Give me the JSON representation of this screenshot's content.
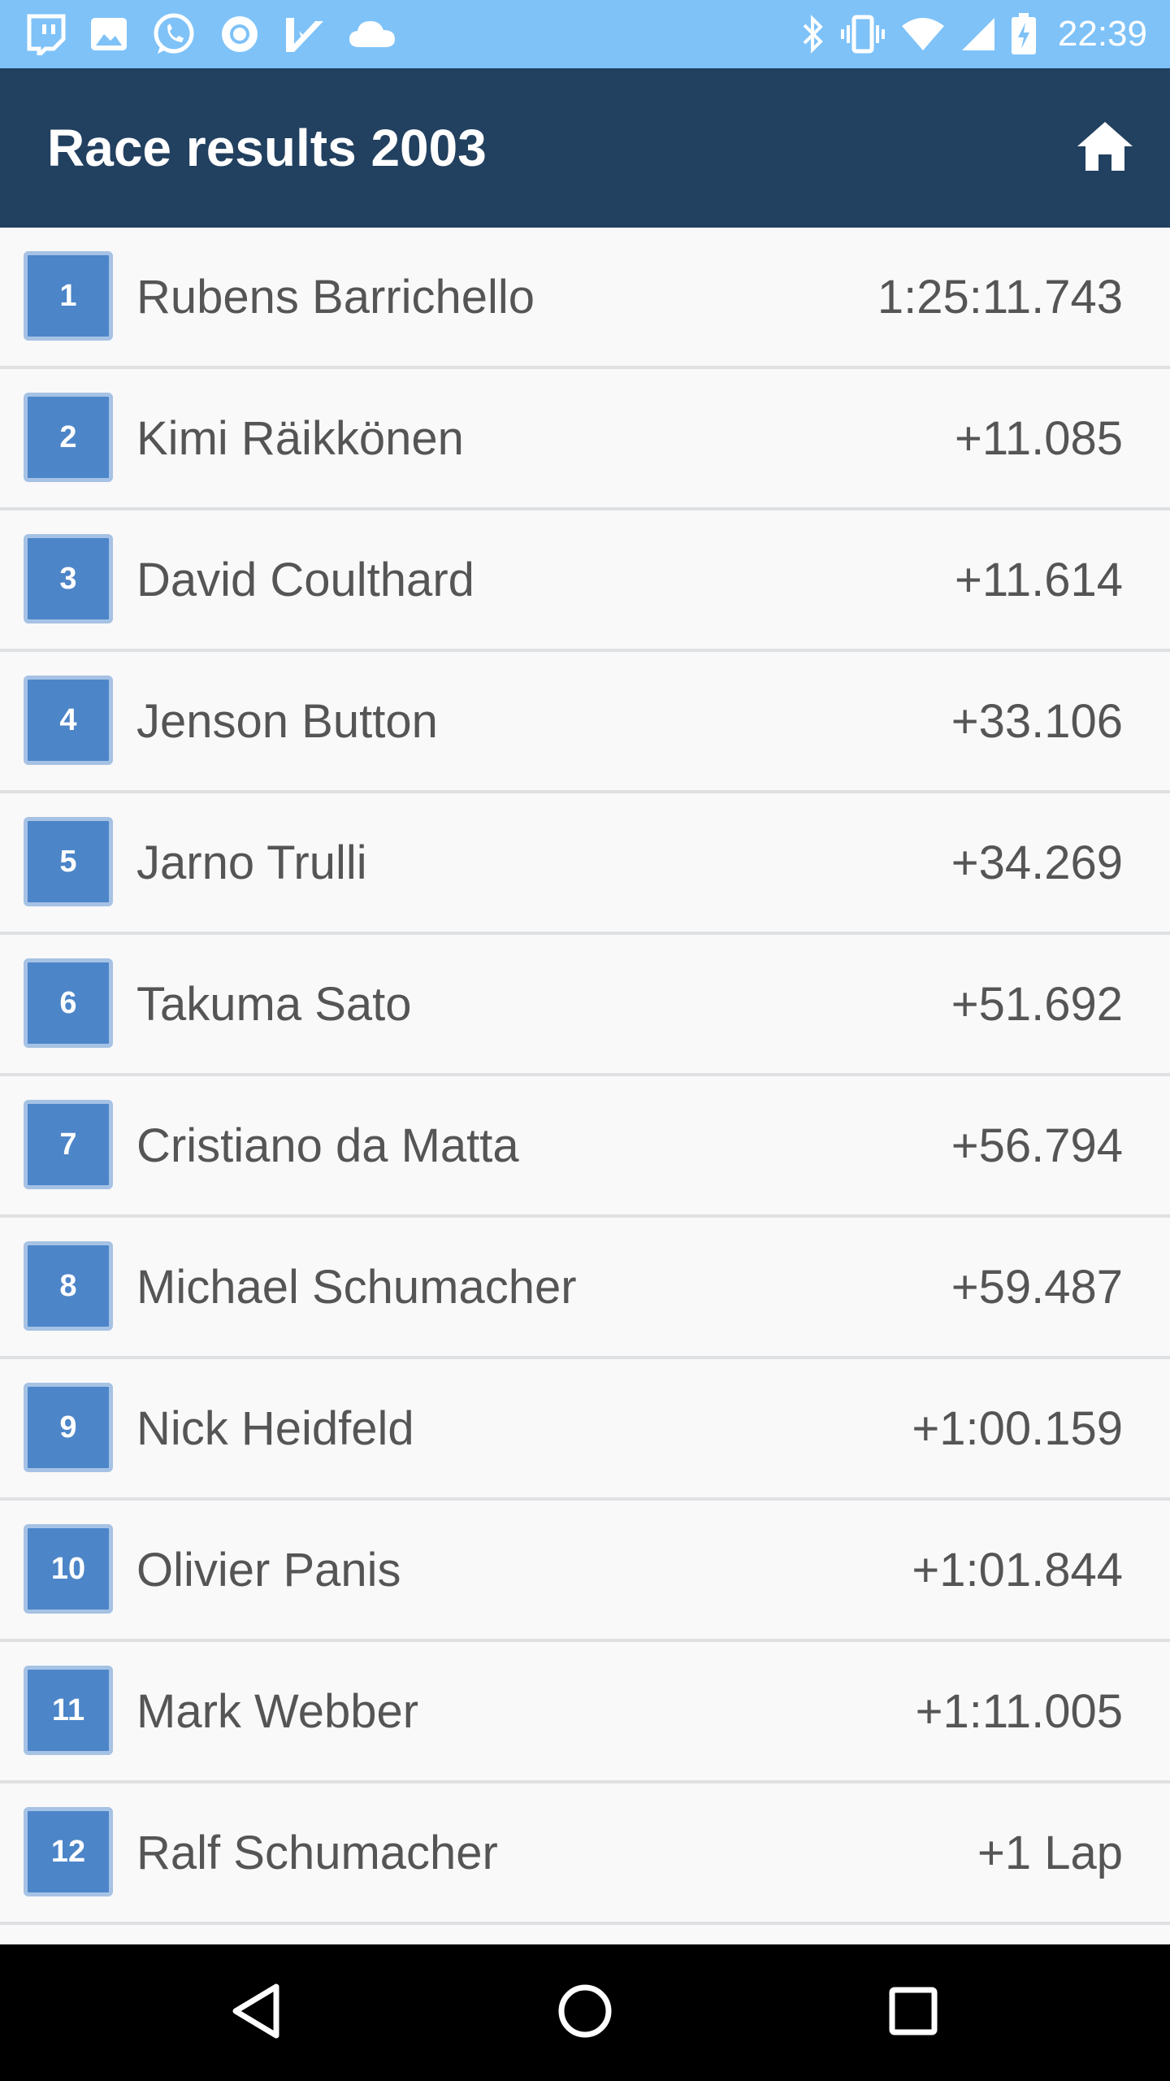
{
  "status_bar": {
    "time": "22:39",
    "left_icons": [
      "twitch-icon",
      "image-icon",
      "whatsapp-icon",
      "circle-app-icon",
      "check-app-icon",
      "cloud-icon"
    ],
    "right_icons": [
      "bluetooth-icon",
      "vibrate-icon",
      "wifi-icon",
      "signal-icon",
      "battery-charging-icon"
    ]
  },
  "app_bar": {
    "title": "Race results 2003",
    "home_icon": "home-icon"
  },
  "results": [
    {
      "position": "1",
      "driver": "Rubens Barrichello",
      "time": "1:25:11.743"
    },
    {
      "position": "2",
      "driver": "Kimi Räikkönen",
      "time": "+11.085"
    },
    {
      "position": "3",
      "driver": "David Coulthard",
      "time": "+11.614"
    },
    {
      "position": "4",
      "driver": "Jenson Button",
      "time": "+33.106"
    },
    {
      "position": "5",
      "driver": "Jarno Trulli",
      "time": "+34.269"
    },
    {
      "position": "6",
      "driver": "Takuma Sato",
      "time": "+51.692"
    },
    {
      "position": "7",
      "driver": "Cristiano da Matta",
      "time": "+56.794"
    },
    {
      "position": "8",
      "driver": "Michael Schumacher",
      "time": "+59.487"
    },
    {
      "position": "9",
      "driver": "Nick Heidfeld",
      "time": "+1:00.159"
    },
    {
      "position": "10",
      "driver": "Olivier Panis",
      "time": "+1:01.844"
    },
    {
      "position": "11",
      "driver": "Mark Webber",
      "time": "+1:11.005"
    },
    {
      "position": "12",
      "driver": "Ralf Schumacher",
      "time": "+1 Lap"
    },
    {
      "position": "",
      "driver": "",
      "time": ""
    }
  ],
  "nav_bar": {
    "icons": [
      "back-icon",
      "home-circle-icon",
      "recents-icon"
    ]
  },
  "colors": {
    "status_bar": "#7ec2f8",
    "app_bar": "#22405f",
    "badge": "#4c85c8",
    "badge_border": "#a6c2e4",
    "text": "#555555",
    "divider": "#dfe0e2"
  }
}
